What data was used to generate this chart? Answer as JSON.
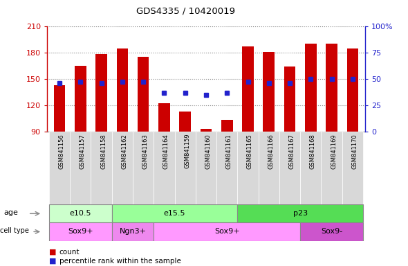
{
  "title": "GDS4335 / 10420019",
  "samples": [
    "GSM841156",
    "GSM841157",
    "GSM841158",
    "GSM841162",
    "GSM841163",
    "GSM841164",
    "GSM841159",
    "GSM841160",
    "GSM841161",
    "GSM841165",
    "GSM841166",
    "GSM841167",
    "GSM841168",
    "GSM841169",
    "GSM841170"
  ],
  "counts": [
    143,
    165,
    178,
    185,
    175,
    122,
    113,
    93,
    103,
    187,
    181,
    164,
    190,
    190,
    185
  ],
  "percentile_ranks": [
    46,
    47,
    46,
    47,
    47,
    37,
    37,
    35,
    37,
    47,
    46,
    46,
    50,
    50,
    50
  ],
  "y_min": 90,
  "y_max": 210,
  "y_ticks": [
    90,
    120,
    150,
    180,
    210
  ],
  "y2_ticks": [
    0,
    25,
    50,
    75,
    100
  ],
  "bar_color": "#cc0000",
  "dot_color": "#2222cc",
  "age_groups": [
    {
      "label": "e10.5",
      "start": 0,
      "end": 3,
      "color": "#ccffcc"
    },
    {
      "label": "e15.5",
      "start": 3,
      "end": 9,
      "color": "#99ff99"
    },
    {
      "label": "p23",
      "start": 9,
      "end": 15,
      "color": "#55dd55"
    }
  ],
  "cell_type_groups": [
    {
      "label": "Sox9+",
      "start": 0,
      "end": 3,
      "color": "#ff99ff"
    },
    {
      "label": "Ngn3+",
      "start": 3,
      "end": 5,
      "color": "#ee88ee"
    },
    {
      "label": "Sox9+",
      "start": 5,
      "end": 12,
      "color": "#ff99ff"
    },
    {
      "label": "Sox9-",
      "start": 12,
      "end": 15,
      "color": "#cc55cc"
    }
  ],
  "row_label_age": "age",
  "row_label_cell": "cell type",
  "legend_count": "count",
  "legend_pct": "percentile rank within the sample",
  "bg_color": "#ffffff",
  "xlabels_bg": "#d8d8d8",
  "grid_color": "#888888",
  "bar_width": 0.55
}
